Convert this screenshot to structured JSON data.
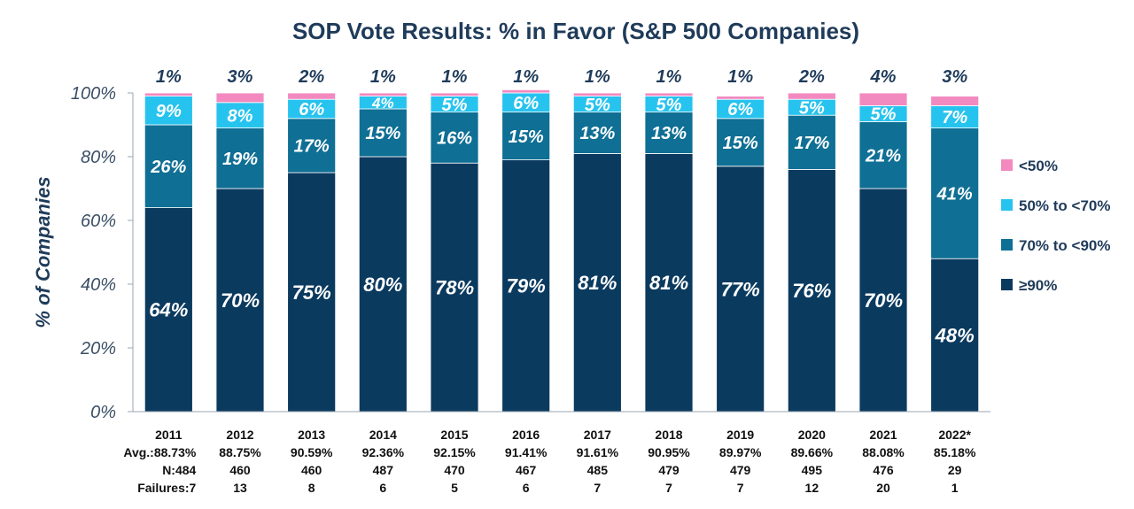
{
  "chart_data": {
    "type": "bar",
    "stacked": true,
    "title": "SOP Vote Results: % in Favor (S&P 500 Companies)",
    "ylabel": "% of Companies",
    "ylim": [
      0,
      100
    ],
    "yticks": [
      "0%",
      "20%",
      "40%",
      "60%",
      "80%",
      "100%"
    ],
    "categories": [
      "2011",
      "2012",
      "2013",
      "2014",
      "2015",
      "2016",
      "2017",
      "2018",
      "2019",
      "2020",
      "2021",
      "2022*"
    ],
    "series": [
      {
        "name": "≥90%",
        "color": "#0b3a5f",
        "values": [
          64,
          70,
          75,
          80,
          78,
          79,
          81,
          81,
          77,
          76,
          70,
          48
        ]
      },
      {
        "name": "70% to <90%",
        "color": "#0f6f94",
        "values": [
          26,
          19,
          17,
          15,
          16,
          15,
          13,
          13,
          15,
          17,
          21,
          41
        ]
      },
      {
        "name": "50% to <70%",
        "color": "#27c3ef",
        "values": [
          9,
          8,
          6,
          4,
          5,
          6,
          5,
          5,
          6,
          5,
          5,
          7
        ]
      },
      {
        "name": "<50%",
        "color": "#f28ac0",
        "values": [
          1,
          3,
          2,
          1,
          1,
          1,
          1,
          1,
          1,
          2,
          4,
          3
        ]
      }
    ],
    "legend": {
      "position": "right",
      "order": [
        "<50%",
        "50% to <70%",
        "70% to <90%",
        "≥90%"
      ]
    },
    "footer_rows": [
      {
        "label": "",
        "values": [
          "2011",
          "2012",
          "2013",
          "2014",
          "2015",
          "2016",
          "2017",
          "2018",
          "2019",
          "2020",
          "2021",
          "2022*"
        ]
      },
      {
        "label": "Avg.:",
        "values": [
          "88.73%",
          "88.75%",
          "90.59%",
          "92.36%",
          "92.15%",
          "91.41%",
          "91.61%",
          "90.95%",
          "89.97%",
          "89.66%",
          "88.08%",
          "85.18%"
        ]
      },
      {
        "label": "N:",
        "values": [
          "484",
          "460",
          "460",
          "487",
          "470",
          "467",
          "485",
          "479",
          "479",
          "495",
          "476",
          "29"
        ]
      },
      {
        "label": "Failures:",
        "values": [
          "7",
          "13",
          "8",
          "6",
          "5",
          "6",
          "7",
          "7",
          "7",
          "12",
          "20",
          "1"
        ]
      }
    ],
    "grid": false
  }
}
